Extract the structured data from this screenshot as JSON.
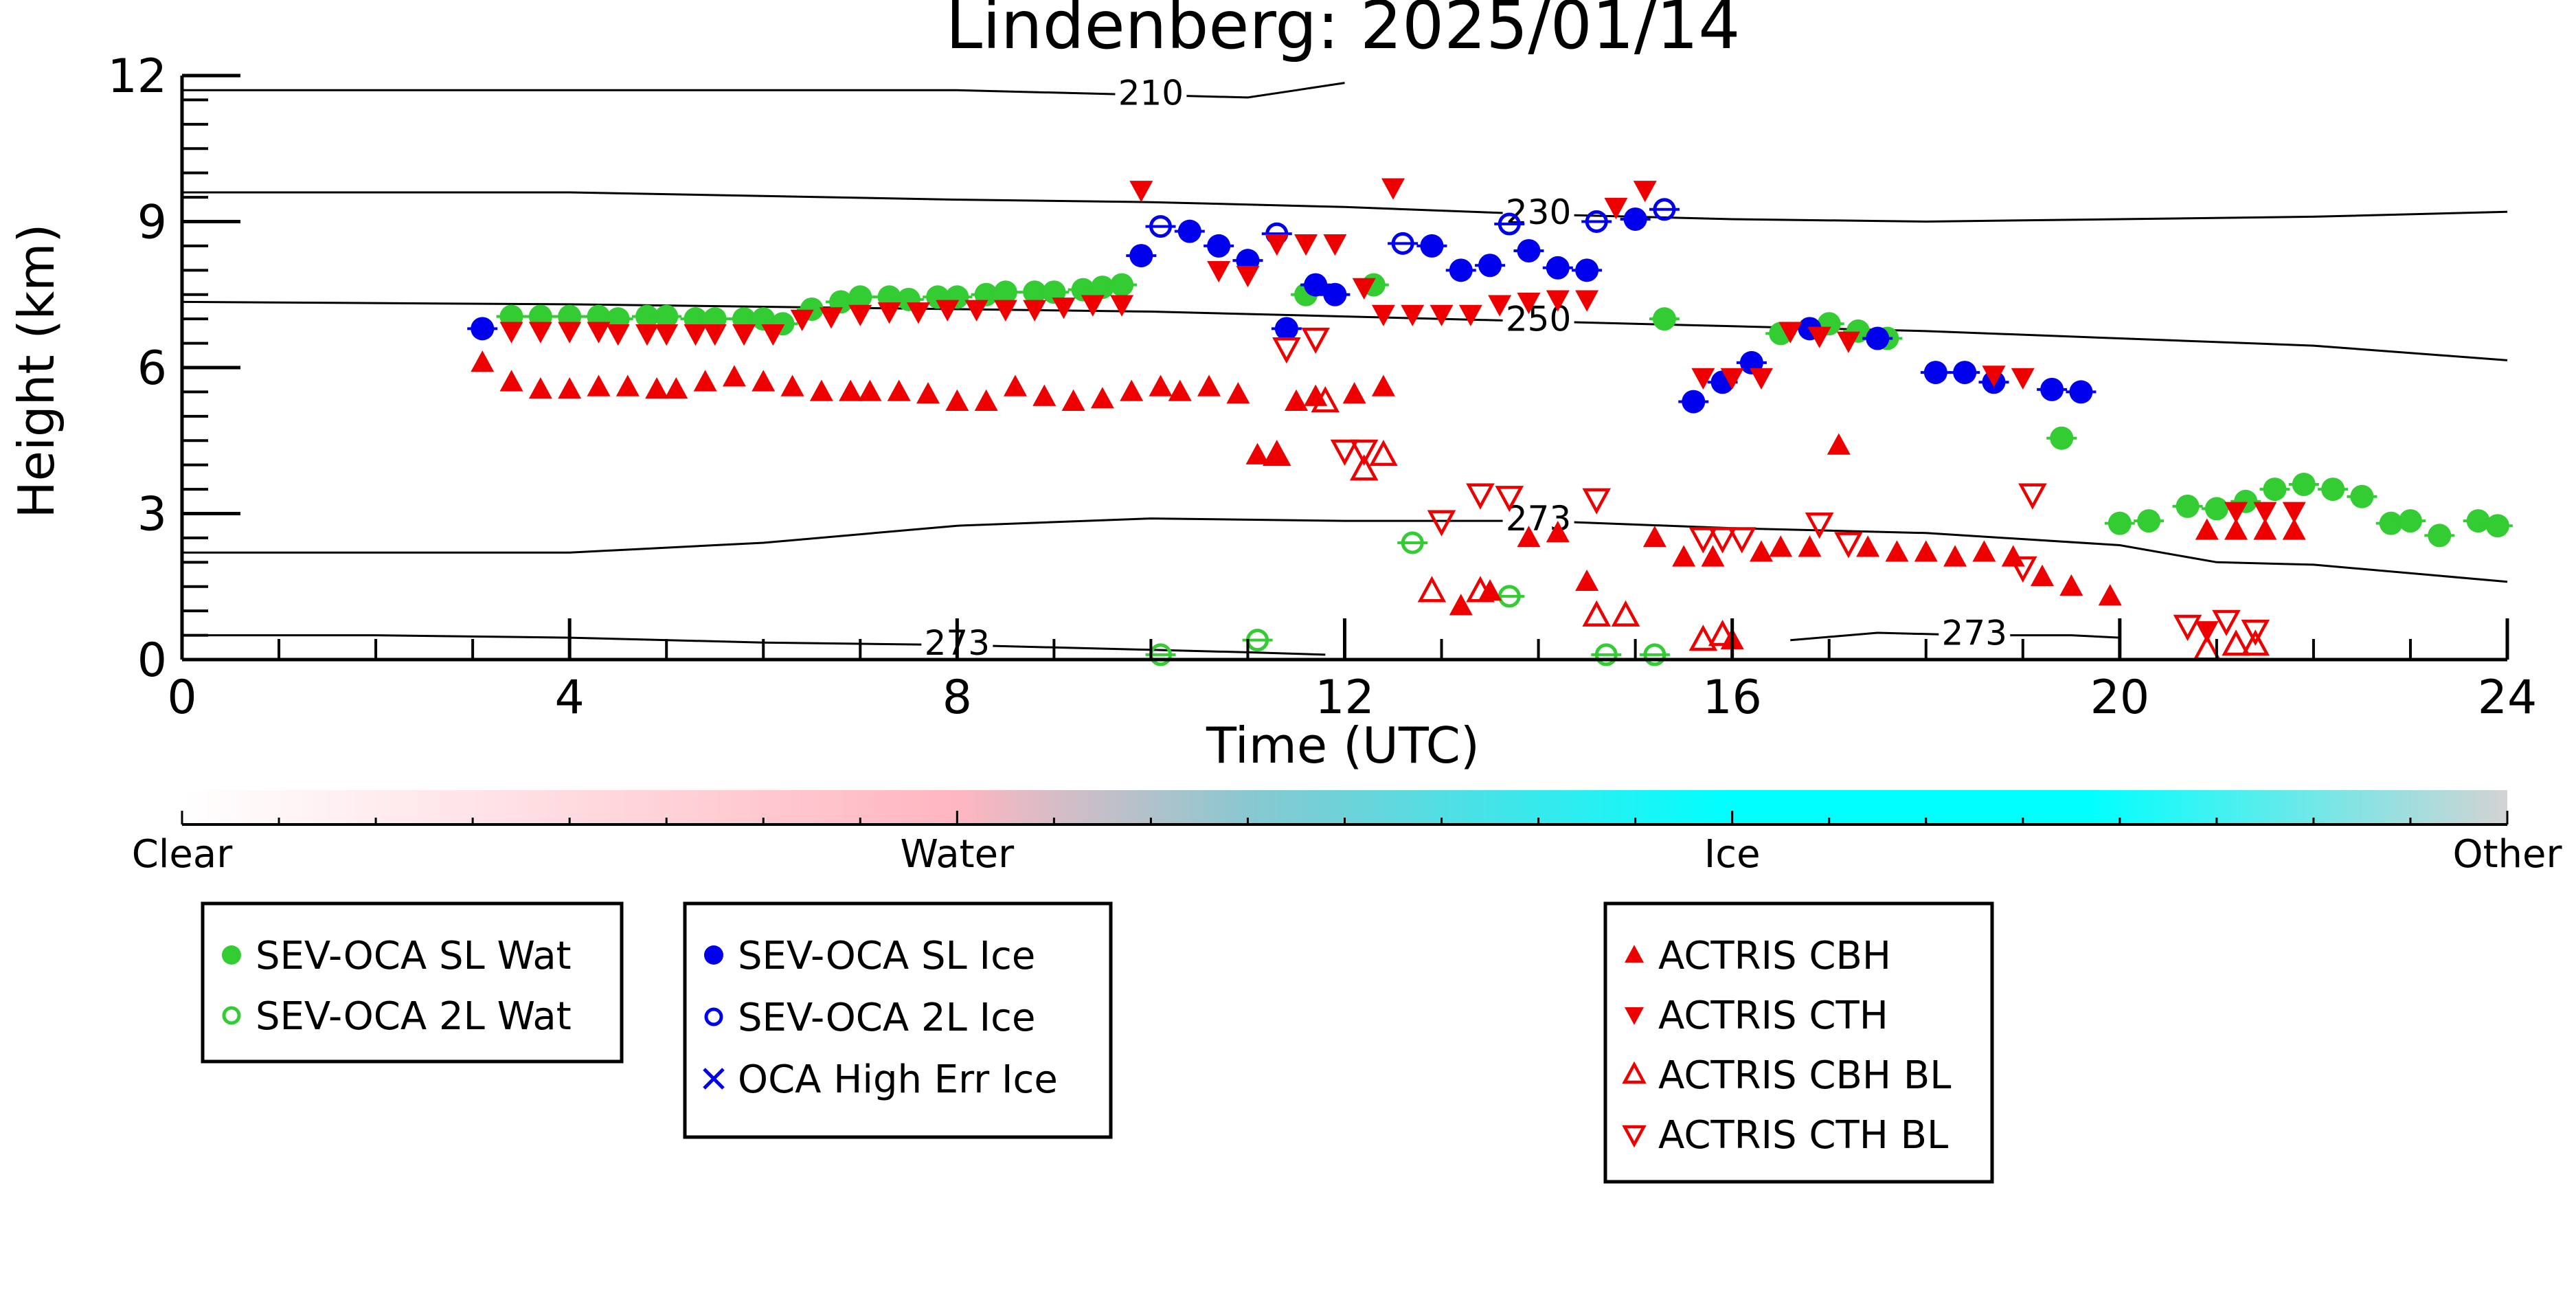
{
  "chart_data": {
    "type": "scatter",
    "title": "Lindenberg: 2025/01/14",
    "xlabel": "Time (UTC)",
    "ylabel": "Height (km)",
    "xlim": [
      0,
      24
    ],
    "ylim": [
      0,
      12
    ],
    "x_ticks": [
      "0",
      "4",
      "8",
      "12",
      "16",
      "20",
      "24"
    ],
    "y_ticks": [
      "0",
      "3",
      "6",
      "9",
      "12"
    ],
    "colorbar": {
      "labels": [
        "Clear",
        "Water",
        "Ice",
        "Other"
      ],
      "colors": [
        "#ffffff",
        "#ffb6c1",
        "#00ffff",
        "#d3d3d3"
      ]
    },
    "contours": [
      {
        "label": "210",
        "points": [
          [
            0,
            11.7
          ],
          [
            4,
            11.7
          ],
          [
            8,
            11.7
          ],
          [
            10,
            11.6
          ],
          [
            11,
            11.55
          ],
          [
            11.5,
            11.7
          ],
          [
            12,
            11.85
          ]
        ]
      },
      {
        "label": "230",
        "points": [
          [
            0,
            9.6
          ],
          [
            4,
            9.6
          ],
          [
            8,
            9.45
          ],
          [
            10,
            9.4
          ],
          [
            12,
            9.3
          ],
          [
            14,
            9.15
          ],
          [
            16,
            9.05
          ],
          [
            18,
            9.0
          ],
          [
            20,
            9.05
          ],
          [
            22,
            9.1
          ],
          [
            24,
            9.2
          ]
        ]
      },
      {
        "label": "250",
        "points": [
          [
            0,
            7.35
          ],
          [
            4,
            7.3
          ],
          [
            8,
            7.2
          ],
          [
            10,
            7.15
          ],
          [
            12,
            7.05
          ],
          [
            14,
            6.95
          ],
          [
            16,
            6.85
          ],
          [
            18,
            6.75
          ],
          [
            20,
            6.6
          ],
          [
            22,
            6.45
          ],
          [
            24,
            6.15
          ]
        ]
      },
      {
        "label": "273",
        "points": [
          [
            0,
            2.2
          ],
          [
            4,
            2.2
          ],
          [
            6,
            2.4
          ],
          [
            8,
            2.75
          ],
          [
            10,
            2.9
          ],
          [
            12,
            2.85
          ],
          [
            14,
            2.85
          ],
          [
            16,
            2.7
          ],
          [
            18,
            2.6
          ],
          [
            20,
            2.35
          ],
          [
            21,
            2.0
          ],
          [
            22,
            1.95
          ],
          [
            24,
            1.6
          ]
        ]
      },
      {
        "label": "273",
        "points": [
          [
            0,
            0.5
          ],
          [
            2,
            0.5
          ],
          [
            4,
            0.45
          ],
          [
            6,
            0.35
          ],
          [
            8,
            0.3
          ],
          [
            10,
            0.2
          ],
          [
            11,
            0.15
          ],
          [
            11.8,
            0.1
          ]
        ]
      },
      {
        "label": "273",
        "points": [
          [
            16.6,
            0.4
          ],
          [
            17.5,
            0.55
          ],
          [
            18.5,
            0.5
          ],
          [
            19.5,
            0.5
          ],
          [
            20,
            0.45
          ]
        ]
      }
    ],
    "series": [
      {
        "name": "SEV-OCA SL Wat",
        "marker": "filled-circle",
        "color": "#33cc33",
        "points": [
          [
            3.4,
            7.05
          ],
          [
            3.7,
            7.05
          ],
          [
            4.0,
            7.05
          ],
          [
            4.3,
            7.05
          ],
          [
            4.5,
            7.0
          ],
          [
            4.8,
            7.05
          ],
          [
            5.0,
            7.05
          ],
          [
            5.3,
            7.0
          ],
          [
            5.5,
            7.0
          ],
          [
            5.8,
            7.0
          ],
          [
            6.0,
            7.0
          ],
          [
            6.2,
            6.9
          ],
          [
            6.5,
            7.2
          ],
          [
            6.8,
            7.35
          ],
          [
            7.0,
            7.45
          ],
          [
            7.3,
            7.45
          ],
          [
            7.5,
            7.4
          ],
          [
            7.8,
            7.45
          ],
          [
            8.0,
            7.45
          ],
          [
            8.3,
            7.5
          ],
          [
            8.5,
            7.55
          ],
          [
            8.8,
            7.55
          ],
          [
            9.0,
            7.55
          ],
          [
            9.3,
            7.6
          ],
          [
            9.5,
            7.65
          ],
          [
            9.7,
            7.7
          ],
          [
            11.6,
            7.5
          ],
          [
            12.3,
            7.7
          ],
          [
            15.3,
            7.0
          ],
          [
            16.5,
            6.7
          ],
          [
            16.8,
            6.8
          ],
          [
            17.0,
            6.9
          ],
          [
            17.3,
            6.75
          ],
          [
            17.6,
            6.6
          ],
          [
            19.4,
            4.55
          ],
          [
            20.0,
            2.8
          ],
          [
            20.3,
            2.85
          ],
          [
            20.7,
            3.15
          ],
          [
            21.0,
            3.1
          ],
          [
            21.3,
            3.25
          ],
          [
            21.6,
            3.5
          ],
          [
            21.9,
            3.6
          ],
          [
            22.2,
            3.5
          ],
          [
            22.5,
            3.35
          ],
          [
            22.8,
            2.8
          ],
          [
            23.0,
            2.85
          ],
          [
            23.3,
            2.55
          ],
          [
            23.7,
            2.85
          ],
          [
            23.9,
            2.75
          ]
        ]
      },
      {
        "name": "SEV-OCA 2L Wat",
        "marker": "open-circle",
        "color": "#33cc33",
        "points": [
          [
            10.1,
            0.1
          ],
          [
            11.1,
            0.4
          ],
          [
            12.7,
            2.4
          ],
          [
            13.7,
            1.3
          ],
          [
            14.7,
            0.1
          ],
          [
            15.2,
            0.1
          ]
        ]
      },
      {
        "name": "SEV-OCA SL Ice",
        "marker": "filled-circle",
        "color": "#0000ee",
        "points": [
          [
            3.1,
            6.8
          ],
          [
            9.9,
            8.3
          ],
          [
            10.4,
            8.8
          ],
          [
            10.7,
            8.5
          ],
          [
            11.0,
            8.2
          ],
          [
            11.4,
            6.8
          ],
          [
            11.7,
            7.7
          ],
          [
            11.9,
            7.5
          ],
          [
            12.9,
            8.5
          ],
          [
            13.2,
            8.0
          ],
          [
            13.5,
            8.1
          ],
          [
            13.9,
            8.4
          ],
          [
            14.2,
            8.05
          ],
          [
            14.5,
            8.0
          ],
          [
            15.0,
            9.05
          ],
          [
            15.6,
            5.3
          ],
          [
            15.9,
            5.7
          ],
          [
            16.2,
            6.1
          ],
          [
            16.8,
            6.8
          ],
          [
            17.5,
            6.6
          ],
          [
            18.1,
            5.9
          ],
          [
            18.4,
            5.9
          ],
          [
            18.7,
            5.7
          ],
          [
            19.3,
            5.55
          ],
          [
            19.6,
            5.5
          ]
        ]
      },
      {
        "name": "SEV-OCA 2L Ice",
        "marker": "open-circle",
        "color": "#0000ee",
        "points": [
          [
            10.1,
            8.9
          ],
          [
            11.3,
            8.75
          ],
          [
            12.6,
            8.55
          ],
          [
            13.7,
            8.95
          ],
          [
            14.6,
            9.0
          ],
          [
            15.3,
            9.25
          ]
        ]
      },
      {
        "name": "OCA High Err Ice",
        "marker": "x",
        "color": "#0000ee",
        "points": []
      },
      {
        "name": "ACTRIS CBH",
        "marker": "filled-triangle-up",
        "color": "#ee0000",
        "points": [
          [
            3.1,
            6.1
          ],
          [
            3.4,
            5.7
          ],
          [
            3.7,
            5.55
          ],
          [
            4.0,
            5.55
          ],
          [
            4.3,
            5.6
          ],
          [
            4.6,
            5.6
          ],
          [
            4.9,
            5.55
          ],
          [
            5.1,
            5.55
          ],
          [
            5.4,
            5.7
          ],
          [
            5.7,
            5.8
          ],
          [
            6.0,
            5.7
          ],
          [
            6.3,
            5.6
          ],
          [
            6.6,
            5.5
          ],
          [
            6.9,
            5.5
          ],
          [
            7.1,
            5.5
          ],
          [
            7.4,
            5.5
          ],
          [
            7.7,
            5.45
          ],
          [
            8.0,
            5.3
          ],
          [
            8.3,
            5.3
          ],
          [
            8.6,
            5.6
          ],
          [
            8.9,
            5.4
          ],
          [
            9.2,
            5.3
          ],
          [
            9.5,
            5.35
          ],
          [
            9.8,
            5.5
          ],
          [
            10.1,
            5.6
          ],
          [
            10.3,
            5.5
          ],
          [
            10.6,
            5.6
          ],
          [
            10.9,
            5.45
          ],
          [
            11.1,
            4.2
          ],
          [
            11.3,
            4.2
          ],
          [
            11.5,
            5.3
          ],
          [
            11.7,
            5.4
          ],
          [
            12.1,
            5.45
          ],
          [
            12.4,
            5.6
          ],
          [
            13.2,
            1.1
          ],
          [
            13.5,
            1.4
          ],
          [
            13.9,
            2.5
          ],
          [
            14.2,
            2.6
          ],
          [
            14.5,
            1.6
          ],
          [
            15.2,
            2.5
          ],
          [
            15.5,
            2.1
          ],
          [
            15.8,
            2.1
          ],
          [
            16.0,
            0.4
          ],
          [
            16.3,
            2.2
          ],
          [
            16.5,
            2.3
          ],
          [
            16.8,
            2.3
          ],
          [
            17.1,
            4.4
          ],
          [
            17.4,
            2.3
          ],
          [
            17.7,
            2.2
          ],
          [
            18.0,
            2.2
          ],
          [
            18.3,
            2.1
          ],
          [
            18.6,
            2.2
          ],
          [
            18.9,
            2.1
          ],
          [
            19.2,
            1.7
          ],
          [
            19.5,
            1.5
          ],
          [
            19.9,
            1.3
          ],
          [
            20.9,
            2.65
          ],
          [
            21.2,
            2.65
          ],
          [
            21.5,
            2.65
          ],
          [
            21.8,
            2.65
          ]
        ]
      },
      {
        "name": "ACTRIS CTH",
        "marker": "filled-triangle-down",
        "color": "#ee0000",
        "points": [
          [
            3.4,
            6.75
          ],
          [
            3.7,
            6.75
          ],
          [
            4.0,
            6.75
          ],
          [
            4.3,
            6.75
          ],
          [
            4.5,
            6.7
          ],
          [
            4.8,
            6.7
          ],
          [
            5.0,
            6.7
          ],
          [
            5.3,
            6.7
          ],
          [
            5.5,
            6.7
          ],
          [
            5.8,
            6.7
          ],
          [
            6.1,
            6.7
          ],
          [
            6.4,
            7.0
          ],
          [
            6.7,
            7.05
          ],
          [
            7.0,
            7.1
          ],
          [
            7.3,
            7.15
          ],
          [
            7.6,
            7.15
          ],
          [
            7.9,
            7.2
          ],
          [
            8.2,
            7.2
          ],
          [
            8.5,
            7.2
          ],
          [
            8.8,
            7.2
          ],
          [
            9.1,
            7.25
          ],
          [
            9.4,
            7.3
          ],
          [
            9.7,
            7.3
          ],
          [
            9.9,
            9.65
          ],
          [
            10.7,
            8.0
          ],
          [
            11.0,
            7.9
          ],
          [
            11.3,
            8.55
          ],
          [
            11.6,
            8.55
          ],
          [
            11.9,
            8.55
          ],
          [
            12.2,
            7.65
          ],
          [
            12.4,
            7.1
          ],
          [
            12.7,
            7.1
          ],
          [
            13.0,
            7.1
          ],
          [
            13.3,
            7.1
          ],
          [
            13.6,
            7.3
          ],
          [
            13.9,
            7.35
          ],
          [
            14.2,
            7.4
          ],
          [
            14.5,
            7.4
          ],
          [
            14.8,
            9.3
          ],
          [
            15.1,
            9.65
          ],
          [
            15.7,
            5.8
          ],
          [
            16.0,
            5.8
          ],
          [
            16.3,
            5.8
          ],
          [
            16.6,
            6.75
          ],
          [
            16.9,
            6.65
          ],
          [
            17.2,
            6.55
          ],
          [
            18.7,
            5.85
          ],
          [
            19.0,
            5.8
          ],
          [
            12.5,
            9.7
          ],
          [
            20.9,
            0.6
          ],
          [
            21.2,
            3.05
          ],
          [
            21.5,
            3.05
          ],
          [
            21.8,
            3.05
          ]
        ]
      },
      {
        "name": "ACTRIS CBH BL",
        "marker": "open-triangle-up",
        "color": "#ee0000",
        "points": [
          [
            11.3,
            4.2
          ],
          [
            11.8,
            5.3
          ],
          [
            12.2,
            3.9
          ],
          [
            12.4,
            4.2
          ],
          [
            12.9,
            1.4
          ],
          [
            13.4,
            1.4
          ],
          [
            14.6,
            0.9
          ],
          [
            14.9,
            0.9
          ],
          [
            15.7,
            0.4
          ],
          [
            15.9,
            0.5
          ],
          [
            20.9,
            0.2
          ],
          [
            21.2,
            0.3
          ],
          [
            21.4,
            0.3
          ]
        ]
      },
      {
        "name": "ACTRIS CTH BL",
        "marker": "open-triangle-down",
        "color": "#ee0000",
        "points": [
          [
            11.4,
            6.4
          ],
          [
            11.7,
            6.6
          ],
          [
            12.0,
            4.3
          ],
          [
            12.2,
            4.3
          ],
          [
            13.0,
            2.85
          ],
          [
            13.4,
            3.4
          ],
          [
            13.7,
            3.35
          ],
          [
            14.6,
            3.3
          ],
          [
            15.7,
            2.5
          ],
          [
            15.9,
            2.5
          ],
          [
            16.1,
            2.5
          ],
          [
            16.9,
            2.8
          ],
          [
            17.2,
            2.4
          ],
          [
            19.0,
            1.9
          ],
          [
            19.1,
            3.4
          ],
          [
            20.7,
            0.7
          ],
          [
            21.1,
            0.8
          ],
          [
            21.4,
            0.6
          ]
        ]
      }
    ]
  }
}
